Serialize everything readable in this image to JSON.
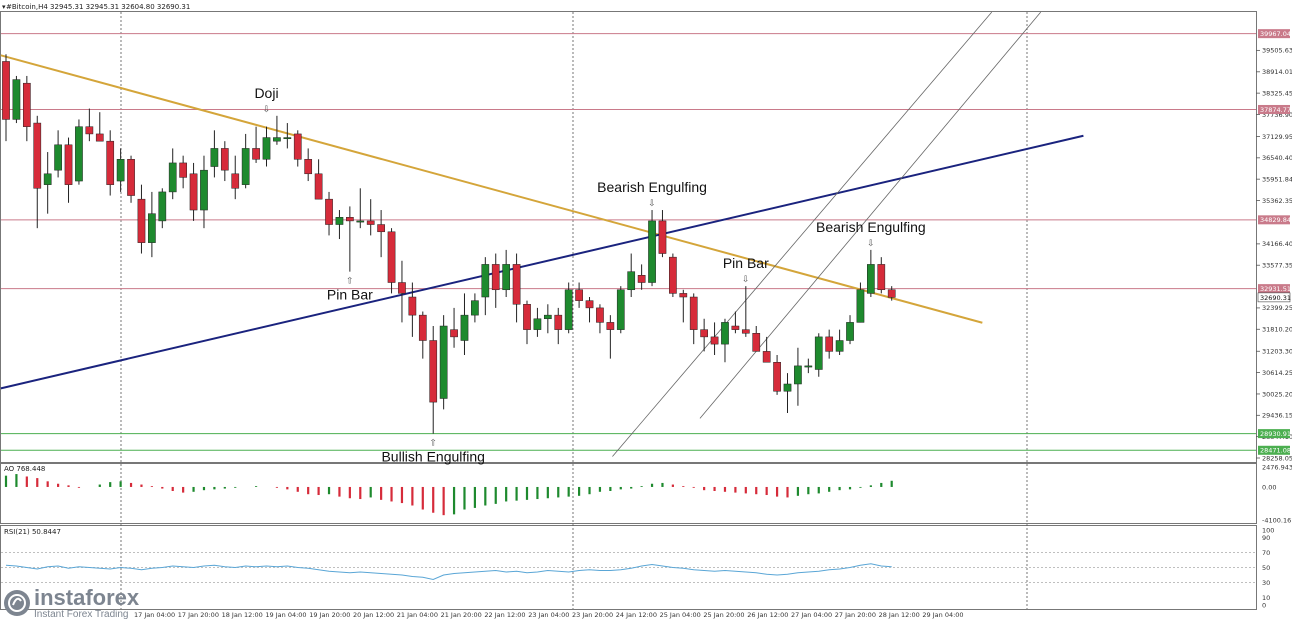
{
  "header": {
    "symbol_line": "#Bitcoin,H4  32945.31 32945.31 32604.80 32690.31"
  },
  "colors": {
    "bull": "#1e8a2e",
    "bear": "#d62b3a",
    "trend_gold": "#d4a53a",
    "trend_navy": "#1a237e",
    "channel": "#666666",
    "level_red": "#c97a8a",
    "level_green": "#4caf50",
    "rsi": "#5aa6d6"
  },
  "chart_data": {
    "type": "candlestick",
    "symbol": "#Bitcoin",
    "timeframe": "H4",
    "price_axis": {
      "range": [
        28258.05,
        40592.0
      ],
      "ticks": [
        "39505.63",
        "38914.01",
        "38325.45",
        "37736.90",
        "37129.95",
        "36540.40",
        "35951.84",
        "35362.35",
        "34166.40",
        "33577.35",
        "32399.25",
        "31810.20",
        "31203.30",
        "30614.25",
        "30025.20",
        "29436.15",
        "28847.10",
        "28258.05"
      ]
    },
    "price_labels": [
      {
        "value": 39967.04,
        "text": "39967.04",
        "color": "red"
      },
      {
        "value": 37874.77,
        "text": "37874.77",
        "color": "red"
      },
      {
        "value": 34829.84,
        "text": "34829.84",
        "color": "red"
      },
      {
        "value": 32931.51,
        "text": "32931.51",
        "color": "red"
      },
      {
        "value": 32690.31,
        "text": "32690.31",
        "color": "white"
      },
      {
        "value": 28930.91,
        "text": "28930.91",
        "color": "green"
      },
      {
        "value": 28471.08,
        "text": "28471.08",
        "color": "green"
      }
    ],
    "levels": [
      {
        "value": 39967.04,
        "kind": "resistance"
      },
      {
        "value": 37874.77,
        "kind": "resistance"
      },
      {
        "value": 34829.84,
        "kind": "resistance"
      },
      {
        "value": 32931.51,
        "kind": "resistance"
      },
      {
        "value": 28930.91,
        "kind": "support"
      },
      {
        "value": 28471.08,
        "kind": "support"
      }
    ],
    "time_labels": [
      "17 Jan 04:00",
      "17 Jan 20:00",
      "18 Jan 12:00",
      "19 Jan 04:00",
      "19 Jan 20:00",
      "20 Jan 12:00",
      "21 Jan 04:00",
      "21 Jan 20:00",
      "22 Jan 12:00",
      "23 Jan 04:00",
      "23 Jan 20:00",
      "24 Jan 12:00",
      "25 Jan 04:00",
      "25 Jan 20:00",
      "26 Jan 12:00",
      "27 Jan 04:00",
      "27 Jan 20:00",
      "28 Jan 12:00",
      "29 Jan 04:00"
    ],
    "candles": [
      {
        "o": 39200,
        "h": 39400,
        "l": 37000,
        "c": 37600
      },
      {
        "o": 37600,
        "h": 38800,
        "l": 37500,
        "c": 38700
      },
      {
        "o": 38600,
        "h": 38800,
        "l": 37000,
        "c": 37400
      },
      {
        "o": 37500,
        "h": 37700,
        "l": 34600,
        "c": 35700
      },
      {
        "o": 35800,
        "h": 36700,
        "l": 35000,
        "c": 36100
      },
      {
        "o": 36200,
        "h": 37300,
        "l": 36000,
        "c": 36900
      },
      {
        "o": 36900,
        "h": 37100,
        "l": 35300,
        "c": 35800
      },
      {
        "o": 35900,
        "h": 37600,
        "l": 35800,
        "c": 37400
      },
      {
        "o": 37400,
        "h": 37900,
        "l": 37000,
        "c": 37200
      },
      {
        "o": 37200,
        "h": 37800,
        "l": 37000,
        "c": 37000
      },
      {
        "o": 37000,
        "h": 37300,
        "l": 35500,
        "c": 35800
      },
      {
        "o": 35900,
        "h": 36800,
        "l": 35600,
        "c": 36500
      },
      {
        "o": 36500,
        "h": 36600,
        "l": 35300,
        "c": 35500
      },
      {
        "o": 35400,
        "h": 35800,
        "l": 33900,
        "c": 34200
      },
      {
        "o": 34200,
        "h": 35600,
        "l": 33800,
        "c": 35000
      },
      {
        "o": 34800,
        "h": 35700,
        "l": 34600,
        "c": 35600
      },
      {
        "o": 35600,
        "h": 36800,
        "l": 35400,
        "c": 36400
      },
      {
        "o": 36400,
        "h": 36600,
        "l": 35700,
        "c": 36000
      },
      {
        "o": 36100,
        "h": 36400,
        "l": 34800,
        "c": 35100
      },
      {
        "o": 35100,
        "h": 36600,
        "l": 34600,
        "c": 36200
      },
      {
        "o": 36300,
        "h": 37300,
        "l": 36000,
        "c": 36800
      },
      {
        "o": 36800,
        "h": 37000,
        "l": 35900,
        "c": 36200
      },
      {
        "o": 36100,
        "h": 36600,
        "l": 35400,
        "c": 35700
      },
      {
        "o": 35800,
        "h": 37200,
        "l": 35700,
        "c": 36800
      },
      {
        "o": 36800,
        "h": 37400,
        "l": 36400,
        "c": 36500
      },
      {
        "o": 36500,
        "h": 37400,
        "l": 36300,
        "c": 37100
      },
      {
        "o": 37000,
        "h": 37700,
        "l": 36900,
        "c": 37100
      },
      {
        "o": 37100,
        "h": 37500,
        "l": 36800,
        "c": 37100
      },
      {
        "o": 37200,
        "h": 37300,
        "l": 36300,
        "c": 36500
      },
      {
        "o": 36500,
        "h": 36800,
        "l": 35900,
        "c": 36100
      },
      {
        "o": 36100,
        "h": 36500,
        "l": 35400,
        "c": 35400
      },
      {
        "o": 35400,
        "h": 35600,
        "l": 34400,
        "c": 34700
      },
      {
        "o": 34700,
        "h": 35100,
        "l": 34300,
        "c": 34900
      },
      {
        "o": 34900,
        "h": 35200,
        "l": 33400,
        "c": 34800
      },
      {
        "o": 34800,
        "h": 35700,
        "l": 34600,
        "c": 34800
      },
      {
        "o": 34800,
        "h": 35400,
        "l": 34400,
        "c": 34700
      },
      {
        "o": 34700,
        "h": 35100,
        "l": 33800,
        "c": 34500
      },
      {
        "o": 34500,
        "h": 34600,
        "l": 32800,
        "c": 33100
      },
      {
        "o": 33100,
        "h": 33700,
        "l": 32000,
        "c": 32800
      },
      {
        "o": 32700,
        "h": 33100,
        "l": 31600,
        "c": 32200
      },
      {
        "o": 32200,
        "h": 32300,
        "l": 31000,
        "c": 31500
      },
      {
        "o": 31500,
        "h": 31900,
        "l": 28930,
        "c": 29800
      },
      {
        "o": 29900,
        "h": 32200,
        "l": 29600,
        "c": 31900
      },
      {
        "o": 31800,
        "h": 32400,
        "l": 31300,
        "c": 31600
      },
      {
        "o": 31500,
        "h": 32800,
        "l": 31100,
        "c": 32200
      },
      {
        "o": 32200,
        "h": 32800,
        "l": 32000,
        "c": 32600
      },
      {
        "o": 32700,
        "h": 33800,
        "l": 32200,
        "c": 33600
      },
      {
        "o": 33600,
        "h": 33900,
        "l": 32400,
        "c": 32900
      },
      {
        "o": 32900,
        "h": 34000,
        "l": 32700,
        "c": 33600
      },
      {
        "o": 33600,
        "h": 33900,
        "l": 32000,
        "c": 32500
      },
      {
        "o": 32500,
        "h": 32600,
        "l": 31400,
        "c": 31800
      },
      {
        "o": 31800,
        "h": 32400,
        "l": 31600,
        "c": 32100
      },
      {
        "o": 32100,
        "h": 32500,
        "l": 31700,
        "c": 32200
      },
      {
        "o": 32200,
        "h": 32400,
        "l": 31400,
        "c": 31800
      },
      {
        "o": 31800,
        "h": 33100,
        "l": 31700,
        "c": 32900
      },
      {
        "o": 32900,
        "h": 33100,
        "l": 32400,
        "c": 32600
      },
      {
        "o": 32600,
        "h": 32700,
        "l": 32000,
        "c": 32400
      },
      {
        "o": 32400,
        "h": 32500,
        "l": 31700,
        "c": 32000
      },
      {
        "o": 32000,
        "h": 32200,
        "l": 31000,
        "c": 31800
      },
      {
        "o": 31800,
        "h": 33000,
        "l": 31700,
        "c": 32900
      },
      {
        "o": 32900,
        "h": 33900,
        "l": 32700,
        "c": 33400
      },
      {
        "o": 33300,
        "h": 33600,
        "l": 32900,
        "c": 33100
      },
      {
        "o": 33100,
        "h": 35100,
        "l": 33000,
        "c": 34800
      },
      {
        "o": 34800,
        "h": 35100,
        "l": 33800,
        "c": 33900
      },
      {
        "o": 33800,
        "h": 33900,
        "l": 32700,
        "c": 32800
      },
      {
        "o": 32800,
        "h": 32900,
        "l": 32000,
        "c": 32700
      },
      {
        "o": 32700,
        "h": 32800,
        "l": 31400,
        "c": 31800
      },
      {
        "o": 31800,
        "h": 32100,
        "l": 31200,
        "c": 31600
      },
      {
        "o": 31600,
        "h": 32000,
        "l": 31100,
        "c": 31400
      },
      {
        "o": 31400,
        "h": 32100,
        "l": 30900,
        "c": 32000
      },
      {
        "o": 31900,
        "h": 32300,
        "l": 31700,
        "c": 31800
      },
      {
        "o": 31800,
        "h": 33000,
        "l": 31600,
        "c": 31700
      },
      {
        "o": 31700,
        "h": 31900,
        "l": 31200,
        "c": 31200
      },
      {
        "o": 31200,
        "h": 31600,
        "l": 30900,
        "c": 30900
      },
      {
        "o": 30900,
        "h": 31100,
        "l": 30000,
        "c": 30100
      },
      {
        "o": 30100,
        "h": 30600,
        "l": 29500,
        "c": 30300
      },
      {
        "o": 30300,
        "h": 31300,
        "l": 29700,
        "c": 30800
      },
      {
        "o": 30800,
        "h": 31000,
        "l": 30600,
        "c": 30800
      },
      {
        "o": 30700,
        "h": 31700,
        "l": 30500,
        "c": 31600
      },
      {
        "o": 31600,
        "h": 31800,
        "l": 31000,
        "c": 31200
      },
      {
        "o": 31200,
        "h": 31800,
        "l": 31100,
        "c": 31500
      },
      {
        "o": 31500,
        "h": 32200,
        "l": 31400,
        "c": 32000
      },
      {
        "o": 32000,
        "h": 33100,
        "l": 32000,
        "c": 32900
      },
      {
        "o": 32800,
        "h": 34000,
        "l": 32700,
        "c": 33600
      },
      {
        "o": 33600,
        "h": 33800,
        "l": 32800,
        "c": 32900
      },
      {
        "o": 32900,
        "h": 33000,
        "l": 32600,
        "c": 32690
      }
    ],
    "trendlines": [
      {
        "name": "descending",
        "from": {
          "idx": -0.5,
          "price": 39370
        },
        "to": {
          "idx": 93.7,
          "price": 31990
        }
      },
      {
        "name": "ascending",
        "from": {
          "idx": -0.5,
          "price": 30180
        },
        "to": {
          "idx": 103.4,
          "price": 37150
        }
      }
    ],
    "channel": [
      {
        "from": {
          "idx": 58.2,
          "price": 28300
        },
        "to": {
          "idx": 94.6,
          "price": 40560
        }
      },
      {
        "from": {
          "idx": 66.6,
          "price": 29350
        },
        "to": {
          "idx": 99.3,
          "price": 40560
        }
      }
    ],
    "annotations": [
      {
        "text": "Doji",
        "candle": 25,
        "price_anchor": 37700,
        "position": "above"
      },
      {
        "text": "Pin Bar",
        "candle": 33,
        "price_anchor": 33400,
        "position": "below"
      },
      {
        "text": "Bullish Engulfing",
        "candle": 41,
        "price_anchor": 28930,
        "position": "below"
      },
      {
        "text": "Bearish Engulfing",
        "candle": 62,
        "price_anchor": 35100,
        "position": "above"
      },
      {
        "text": "Pin Bar",
        "candle": 71,
        "price_anchor": 33000,
        "position": "above"
      },
      {
        "text": "Bearish Engulfing",
        "candle": 83,
        "price_anchor": 34000,
        "position": "above"
      }
    ],
    "ao": {
      "label": "AO 768.448",
      "range": [
        -4100.161,
        2476.943
      ],
      "ticks": [
        "2476.943",
        "0.00",
        "-4100.161"
      ],
      "values": [
        1400,
        1600,
        1300,
        1100,
        700,
        400,
        200,
        -100,
        0,
        300,
        600,
        700,
        500,
        300,
        100,
        -200,
        -500,
        -700,
        -600,
        -400,
        -300,
        -200,
        -100,
        0,
        100,
        0,
        -100,
        -300,
        -600,
        -900,
        -1000,
        -900,
        -1200,
        -1400,
        -1500,
        -1300,
        -1600,
        -1800,
        -2000,
        -2300,
        -2800,
        -3200,
        -3500,
        -3400,
        -2800,
        -2600,
        -2300,
        -2100,
        -1800,
        -1700,
        -1600,
        -1500,
        -1400,
        -1300,
        -1200,
        -1100,
        -900,
        -600,
        -500,
        -300,
        -200,
        100,
        400,
        500,
        300,
        100,
        -100,
        -400,
        -500,
        -600,
        -700,
        -800,
        -900,
        -1000,
        -1200,
        -1300,
        -1100,
        -900,
        -800,
        -600,
        -400,
        -300,
        -100,
        200,
        500,
        768
      ]
    },
    "rsi": {
      "label": "RSI(21) 50.8447",
      "range": [
        0,
        100
      ],
      "ticks": [
        "100",
        "90",
        "70",
        "50",
        "30",
        "10",
        "0"
      ],
      "levels": [
        70,
        50,
        30
      ],
      "values": [
        53,
        52,
        50,
        48,
        51,
        52,
        49,
        51,
        50,
        49,
        48,
        50,
        49,
        47,
        49,
        50,
        52,
        51,
        50,
        52,
        53,
        51,
        50,
        52,
        51,
        52,
        51,
        52,
        50,
        49,
        47,
        45,
        44,
        43,
        44,
        43,
        42,
        41,
        40,
        38,
        37,
        34,
        40,
        42,
        43,
        44,
        45,
        46,
        44,
        45,
        43,
        44,
        46,
        45,
        44,
        46,
        47,
        46,
        46,
        47,
        49,
        52,
        54,
        52,
        50,
        49,
        47,
        46,
        45,
        46,
        45,
        44,
        43,
        41,
        40,
        41,
        43,
        44,
        45,
        47,
        48,
        50,
        53,
        55,
        52,
        51
      ]
    }
  }
}
